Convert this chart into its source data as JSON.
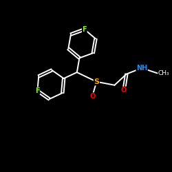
{
  "background_color": "#000000",
  "bond_color": "#ffffff",
  "F_color": "#7fff00",
  "S_color": "#ffa500",
  "O_color": "#ff0000",
  "N_color": "#1e90ff",
  "figsize": [
    2.5,
    2.5
  ],
  "dpi": 100,
  "xlim": [
    0,
    10
  ],
  "ylim": [
    0,
    10
  ]
}
